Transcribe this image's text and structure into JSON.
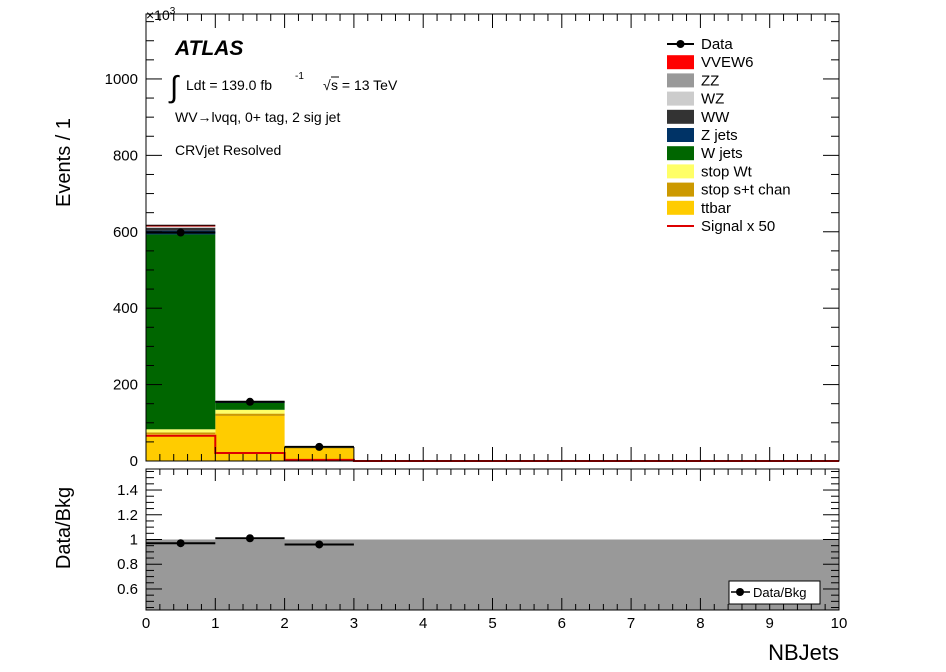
{
  "chart_data": [
    {
      "type": "bar",
      "subtype": "stacked-histogram",
      "xlabel": "",
      "ylabel": "Events / 1",
      "y_multiplier": "×10",
      "y_exponent": "3",
      "xlim": [
        0,
        10
      ],
      "ylim": [
        0,
        1170
      ],
      "y_ticks": [
        0,
        200,
        400,
        600,
        800,
        1000
      ],
      "bins": [
        [
          0,
          1
        ],
        [
          1,
          2
        ],
        [
          2,
          3
        ],
        [
          3,
          4
        ],
        [
          4,
          5
        ],
        [
          5,
          6
        ],
        [
          6,
          7
        ],
        [
          7,
          8
        ],
        [
          8,
          9
        ],
        [
          9,
          10
        ]
      ],
      "annotations": {
        "atlas": "ATLAS",
        "lumi_prefix": "Ldt = 139.0 fb",
        "lumi_exp": "-1",
        "sqrt_s": "s = 13 TeV",
        "region_line1": "WV→lνqq, 0+ tag, 2 sig jet",
        "region_line2": "CRVjet Resolved"
      },
      "stack_order": [
        "ttbar",
        "stop s+t chan",
        "stop Wt",
        "W jets",
        "Z jets",
        "WW",
        "WZ",
        "ZZ",
        "VVEW6"
      ],
      "series": [
        {
          "name": "ttbar",
          "color": "#ffcc00",
          "values": [
            70,
            118,
            33,
            0,
            0,
            0,
            0,
            0,
            0,
            0
          ]
        },
        {
          "name": "stop s+t chan",
          "color": "#cc9900",
          "values": [
            5,
            6,
            1,
            0,
            0,
            0,
            0,
            0,
            0,
            0
          ]
        },
        {
          "name": "stop Wt",
          "color": "#ffff66",
          "values": [
            8,
            10,
            2,
            0,
            0,
            0,
            0,
            0,
            0,
            0
          ]
        },
        {
          "name": "W jets",
          "color": "#006600",
          "values": [
            510,
            18,
            1,
            0,
            0,
            0,
            0,
            0,
            0,
            0
          ]
        },
        {
          "name": "Z jets",
          "color": "#003366",
          "values": [
            10,
            1,
            0,
            0,
            0,
            0,
            0,
            0,
            0,
            0
          ]
        },
        {
          "name": "WW",
          "color": "#333333",
          "values": [
            7,
            1,
            0,
            0,
            0,
            0,
            0,
            0,
            0,
            0
          ]
        },
        {
          "name": "WZ",
          "color": "#cccccc",
          "values": [
            3,
            0.5,
            0,
            0,
            0,
            0,
            0,
            0,
            0,
            0
          ]
        },
        {
          "name": "ZZ",
          "color": "#999999",
          "values": [
            1,
            0,
            0,
            0,
            0,
            0,
            0,
            0,
            0,
            0
          ]
        },
        {
          "name": "VVEW6",
          "color": "#ff0000",
          "values": [
            3,
            0.5,
            0,
            0,
            0,
            0,
            0,
            0,
            0,
            0
          ]
        }
      ],
      "data": {
        "name": "Data",
        "x": [
          0.5,
          1.5,
          2.5
        ],
        "values": [
          598,
          155,
          37
        ]
      },
      "signal": {
        "name": "Signal x 50",
        "color": "#dd0000",
        "values": [
          66,
          21,
          3,
          0,
          0,
          0,
          0,
          0,
          0,
          0
        ]
      },
      "legend": {
        "placement": "top-right",
        "entries": [
          {
            "label": "Data",
            "kind": "marker",
            "color": "#000000"
          },
          {
            "label": "VVEW6",
            "kind": "box",
            "color": "#ff0000"
          },
          {
            "label": "ZZ",
            "kind": "box",
            "color": "#999999"
          },
          {
            "label": "WZ",
            "kind": "box",
            "color": "#cccccc"
          },
          {
            "label": "WW",
            "kind": "box",
            "color": "#333333"
          },
          {
            "label": "Z jets",
            "kind": "box",
            "color": "#003366"
          },
          {
            "label": "W jets",
            "kind": "box",
            "color": "#006600"
          },
          {
            "label": "stop Wt",
            "kind": "box",
            "color": "#ffff66"
          },
          {
            "label": "stop s+t chan",
            "kind": "box",
            "color": "#cc9900"
          },
          {
            "label": "ttbar",
            "kind": "box",
            "color": "#ffcc00"
          },
          {
            "label": "Signal x 50",
            "kind": "line",
            "color": "#dd0000"
          }
        ]
      }
    },
    {
      "type": "scatter",
      "subtype": "ratio",
      "xlabel": "NBJets",
      "ylabel": "Data/Bkg",
      "xlim": [
        0,
        10
      ],
      "ylim": [
        0.43,
        1.57
      ],
      "y_ticks": [
        0.6,
        0.8,
        1,
        1.2,
        1.4
      ],
      "x_ticks": [
        0,
        1,
        2,
        3,
        4,
        5,
        6,
        7,
        8,
        9,
        10
      ],
      "band_color": "#999999",
      "band_range": [
        0.43,
        1.0
      ],
      "x": [
        0.5,
        1.5,
        2.5
      ],
      "values": [
        0.97,
        1.01,
        0.96
      ],
      "x_err": 0.5,
      "legend": {
        "placement": "bottom-right",
        "entries": [
          {
            "label": "Data/Bkg",
            "kind": "marker"
          }
        ]
      }
    }
  ]
}
